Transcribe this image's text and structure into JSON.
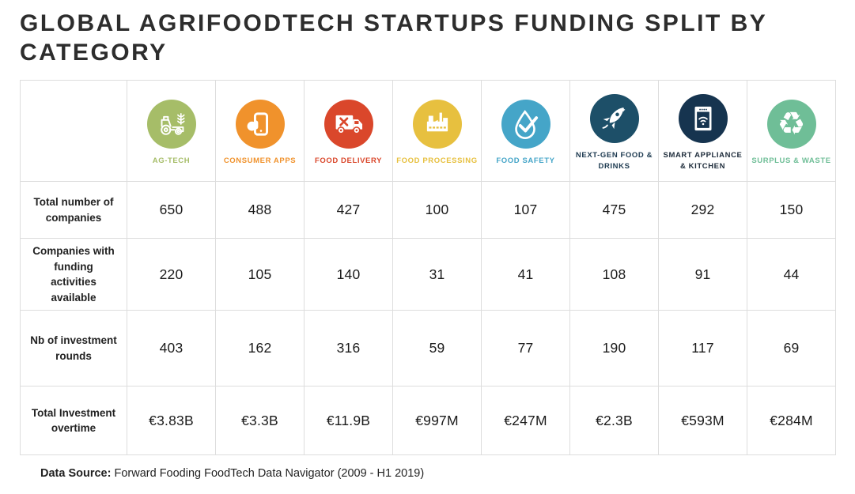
{
  "title": "GLOBAL AGRIFOODTECH STARTUPS FUNDING SPLIT BY CATEGORY",
  "footer": {
    "label": "Data Source:",
    "text": " Forward Fooding FoodTech Data Navigator (2009 - H1 2019)"
  },
  "table": {
    "categories": [
      {
        "label": "AG-TECH",
        "icon": "tractor-icon",
        "color": "#a6bd68"
      },
      {
        "label": "CONSUMER APPS",
        "icon": "smartphone-hand-icon",
        "color": "#f0922c"
      },
      {
        "label": "FOOD DELIVERY",
        "icon": "delivery-truck-icon",
        "color": "#da472b"
      },
      {
        "label": "FOOD PROCESSING",
        "icon": "factory-icon",
        "color": "#e7c03f"
      },
      {
        "label": "FOOD SAFETY",
        "icon": "droplet-check-icon",
        "color": "#45a5c8"
      },
      {
        "label": "NEXT-GEN FOOD & DRINKS",
        "icon": "rocket-icon",
        "color": "#1d4f68",
        "label_color": "#1d3a50"
      },
      {
        "label": "SMART APPLIANCE & KITCHEN",
        "icon": "smart-oven-icon",
        "color": "#16344f",
        "label_color": "#1d2b3a"
      },
      {
        "label": "SURPLUS & WASTE",
        "icon": "recycle-icon",
        "color": "#6fbe97"
      }
    ],
    "rows": [
      {
        "label": "Total number of companies",
        "values": [
          "650",
          "488",
          "427",
          "100",
          "107",
          "475",
          "292",
          "150"
        ]
      },
      {
        "label": "Companies with funding activities available",
        "values": [
          "220",
          "105",
          "140",
          "31",
          "41",
          "108",
          "91",
          "44"
        ]
      },
      {
        "label": "Nb of investment rounds",
        "values": [
          "403",
          "162",
          "316",
          "59",
          "77",
          "190",
          "117",
          "69"
        ]
      },
      {
        "label": "Total Investment overtime",
        "values": [
          "€3.83B",
          "€3.3B",
          "€11.9B",
          "€997M",
          "€247M",
          "€2.3B",
          "€593M",
          "€284M"
        ]
      }
    ]
  },
  "chart_data": {
    "type": "table",
    "title": "GLOBAL AGRIFOODTECH STARTUPS FUNDING SPLIT BY CATEGORY",
    "categories": [
      "AG-TECH",
      "CONSUMER APPS",
      "FOOD DELIVERY",
      "FOOD PROCESSING",
      "FOOD SAFETY",
      "NEXT-GEN FOOD & DRINKS",
      "SMART APPLIANCE & KITCHEN",
      "SURPLUS & WASTE"
    ],
    "series": [
      {
        "name": "Total number of companies",
        "values": [
          650,
          488,
          427,
          100,
          107,
          475,
          292,
          150
        ]
      },
      {
        "name": "Companies with funding activities available",
        "values": [
          220,
          105,
          140,
          31,
          41,
          108,
          91,
          44
        ]
      },
      {
        "name": "Nb of investment rounds",
        "values": [
          403,
          162,
          316,
          59,
          77,
          190,
          117,
          69
        ]
      },
      {
        "name": "Total Investment overtime",
        "values": [
          "€3.83B",
          "€3.3B",
          "€11.9B",
          "€997M",
          "€247M",
          "€2.3B",
          "€593M",
          "€284M"
        ]
      }
    ],
    "source": "Forward Fooding FoodTech Data Navigator (2009 - H1 2019)"
  }
}
